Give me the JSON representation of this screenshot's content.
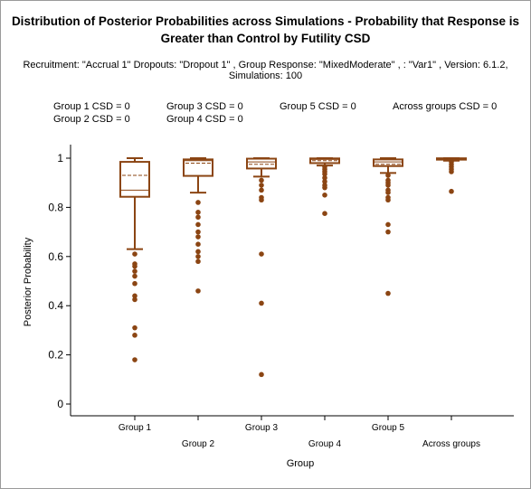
{
  "chart_data": {
    "type": "boxplot",
    "title": "Distribution of Posterior Probabilities across Simulations - Probability that Response is Greater than Control by Futility CSD",
    "subtitle": "Recruitment: \"Accrual 1\" Dropouts: \"Dropout 1\" , Group Response: \"MixedModerate\" , : \"Var1\" , Version: 6.1.2, Simulations: 100",
    "csd_labels": [
      "Group 1 CSD = 0",
      "Group 2 CSD = 0",
      "Group 3 CSD = 0",
      "Group 4 CSD = 0",
      "Group 5 CSD = 0",
      "Across groups CSD = 0"
    ],
    "xlabel": "Group",
    "ylabel": "Posterior Probability",
    "ylim": [
      0,
      1
    ],
    "yticks": [
      "0",
      "0.2",
      "0.4",
      "0.6",
      "0.8",
      "1"
    ],
    "categories": [
      "Group 1",
      "Group 2",
      "Group 3",
      "Group 4",
      "Group 5",
      "Across groups"
    ],
    "box_color": "#8b4513",
    "series": [
      {
        "q1": 0.843,
        "median": 0.87,
        "q3": 0.985,
        "mean": 0.93,
        "whisker_low": 0.63,
        "whisker_high": 1.0,
        "outliers": [
          0.61,
          0.57,
          0.56,
          0.54,
          0.52,
          0.49,
          0.44,
          0.425,
          0.31,
          0.28,
          0.18
        ]
      },
      {
        "q1": 0.928,
        "median": 0.99,
        "q3": 0.995,
        "mean": 0.98,
        "whisker_low": 0.86,
        "whisker_high": 1.0,
        "outliers": [
          0.82,
          0.78,
          0.76,
          0.73,
          0.7,
          0.68,
          0.65,
          0.62,
          0.6,
          0.58,
          0.46
        ]
      },
      {
        "q1": 0.958,
        "median": 0.985,
        "q3": 0.998,
        "mean": 0.975,
        "whisker_low": 0.925,
        "whisker_high": 1.0,
        "outliers": [
          0.91,
          0.89,
          0.87,
          0.84,
          0.83,
          0.61,
          0.41,
          0.12
        ]
      },
      {
        "q1": 0.98,
        "median": 0.995,
        "q3": 0.999,
        "mean": 0.99,
        "whisker_low": 0.97,
        "whisker_high": 1.0,
        "outliers": [
          0.965,
          0.955,
          0.945,
          0.935,
          0.92,
          0.905,
          0.89,
          0.88,
          0.85,
          0.775
        ]
      },
      {
        "q1": 0.968,
        "median": 0.985,
        "q3": 0.995,
        "mean": 0.975,
        "whisker_low": 0.94,
        "whisker_high": 1.0,
        "outliers": [
          0.93,
          0.91,
          0.9,
          0.89,
          0.87,
          0.86,
          0.84,
          0.83,
          0.73,
          0.7,
          0.45
        ]
      },
      {
        "q1": 0.994,
        "median": 0.998,
        "q3": 0.9995,
        "mean": 0.997,
        "whisker_low": 0.99,
        "whisker_high": 1.0,
        "outliers": [
          0.985,
          0.975,
          0.965,
          0.955,
          0.945,
          0.865
        ]
      }
    ]
  }
}
